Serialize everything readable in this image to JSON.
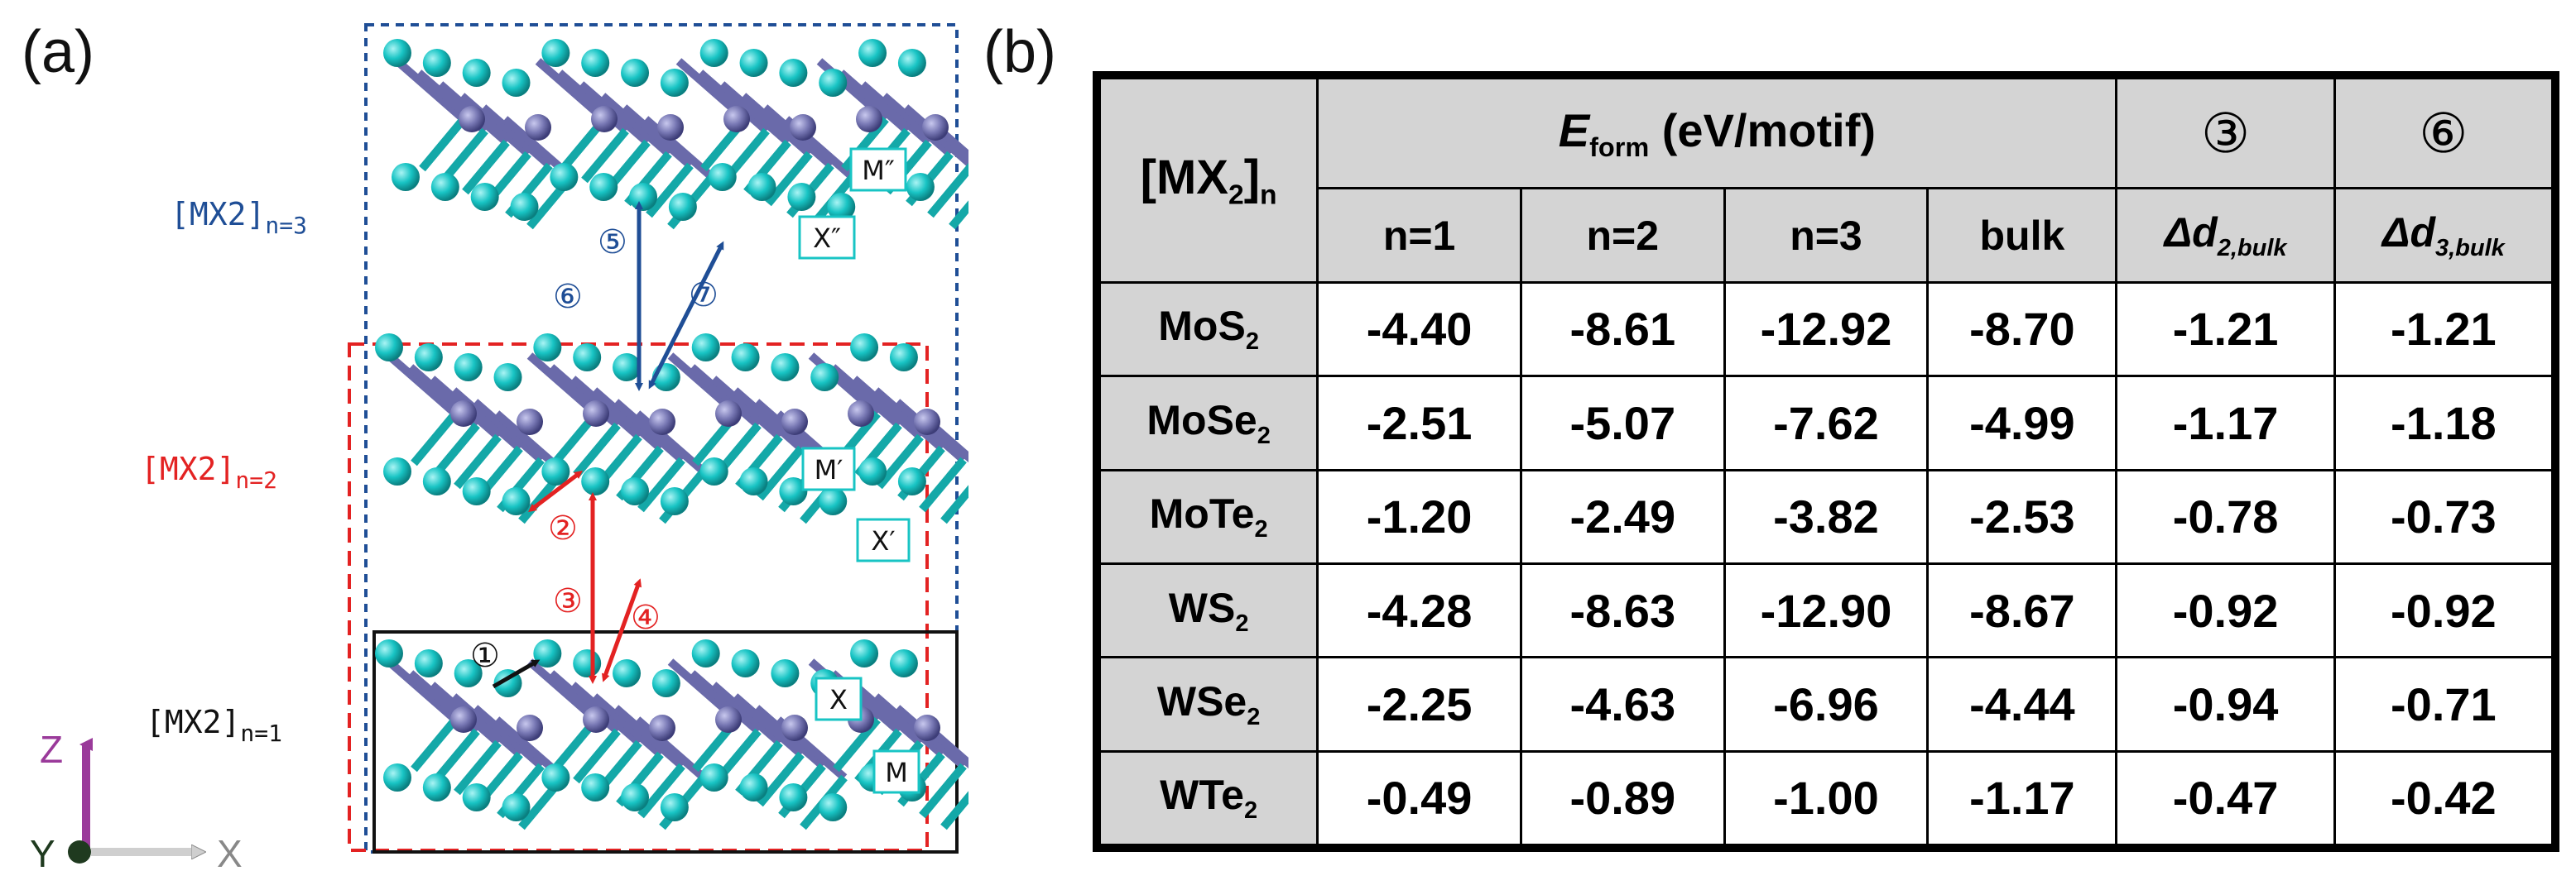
{
  "figure": {
    "panel_a_label": "(a)",
    "panel_b_label": "(b)"
  },
  "structure": {
    "layer_labels": [
      {
        "base": "[MX2]",
        "sub": "n=3",
        "color": "#1f4e96"
      },
      {
        "base": "[MX2]",
        "sub": "n=2",
        "color": "#e32222"
      },
      {
        "base": "[MX2]",
        "sub": "n=1",
        "color": "#111111"
      }
    ],
    "atom_tags": [
      "M″",
      "X″",
      "M′",
      "X′",
      "X",
      "M"
    ],
    "markers": [
      "①",
      "②",
      "③",
      "④",
      "⑤",
      "⑥",
      "⑦"
    ],
    "axes": {
      "z": "Z",
      "y": "Y",
      "x": "X"
    },
    "colors": {
      "chalcogen": "#18c4c4",
      "metal": "#7878b4",
      "blue_box": "#1f4e96",
      "red_box": "#e32222",
      "black_box": "#111111",
      "z_axis": "#9a3a9a"
    }
  },
  "table": {
    "corner": {
      "base": "[MX",
      "sub2": "2",
      "close": "]",
      "subn": "n"
    },
    "eform_header": {
      "e": "E",
      "sub": "form",
      "rest": " (eV/motif)"
    },
    "circ3": "③",
    "circ6": "⑥",
    "col_headers": [
      "n=1",
      "n=2",
      "n=3",
      "bulk"
    ],
    "delta2": {
      "d": "Δd",
      "sub": "2,bulk"
    },
    "delta3": {
      "d": "Δd",
      "sub": "3,bulk"
    },
    "rows": [
      {
        "label": "MoS",
        "sub": "2",
        "values": [
          "-4.40",
          "-8.61",
          "-12.92",
          "-8.70",
          "-1.21",
          "-1.21"
        ]
      },
      {
        "label": "MoSe",
        "sub": "2",
        "values": [
          "-2.51",
          "-5.07",
          "-7.62",
          "-4.99",
          "-1.17",
          "-1.18"
        ]
      },
      {
        "label": "MoTe",
        "sub": "2",
        "values": [
          "-1.20",
          "-2.49",
          "-3.82",
          "-2.53",
          "-0.78",
          "-0.73"
        ]
      },
      {
        "label": "WS",
        "sub": "2",
        "values": [
          "-4.28",
          "-8.63",
          "-12.90",
          "-8.67",
          "-0.92",
          "-0.92"
        ]
      },
      {
        "label": "WSe",
        "sub": "2",
        "values": [
          "-2.25",
          "-4.63",
          "-6.96",
          "-4.44",
          "-0.94",
          "-0.71"
        ]
      },
      {
        "label": "WTe",
        "sub": "2",
        "values": [
          "-0.49",
          "-0.89",
          "-1.00",
          "-1.17",
          "-0.47",
          "-0.42"
        ]
      }
    ]
  }
}
